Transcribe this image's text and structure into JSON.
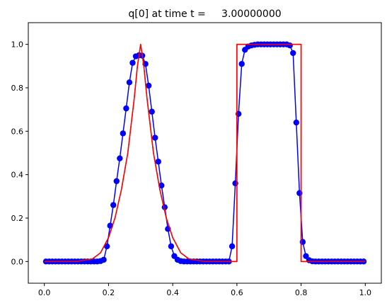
{
  "chart_data": {
    "type": "line",
    "title": "q[0] at time t =     3.00000000",
    "xlabel": "",
    "ylabel": "",
    "xlim": [
      -0.05,
      1.05
    ],
    "ylim": [
      -0.1,
      1.1
    ],
    "xticks": [
      0.0,
      0.2,
      0.4,
      0.6,
      0.8,
      1.0
    ],
    "xtick_labels": [
      "0.0",
      "0.2",
      "0.4",
      "0.6",
      "0.8",
      "1.0"
    ],
    "yticks": [
      0.0,
      0.2,
      0.4,
      0.6,
      0.8,
      1.0
    ],
    "ytick_labels": [
      "0.0",
      "0.2",
      "0.4",
      "0.6",
      "0.8",
      "1.0"
    ],
    "grid": false,
    "series": [
      {
        "style": "line-with-markers",
        "color": "#0000ff",
        "x": [
          0.005,
          0.015,
          0.025,
          0.035,
          0.045,
          0.055,
          0.065,
          0.075,
          0.085,
          0.095,
          0.105,
          0.115,
          0.125,
          0.135,
          0.145,
          0.155,
          0.165,
          0.175,
          0.185,
          0.195,
          0.205,
          0.215,
          0.225,
          0.235,
          0.245,
          0.255,
          0.265,
          0.275,
          0.285,
          0.295,
          0.305,
          0.315,
          0.325,
          0.335,
          0.345,
          0.355,
          0.365,
          0.375,
          0.385,
          0.395,
          0.405,
          0.415,
          0.425,
          0.435,
          0.445,
          0.455,
          0.465,
          0.475,
          0.485,
          0.495,
          0.505,
          0.515,
          0.525,
          0.535,
          0.545,
          0.555,
          0.565,
          0.575,
          0.585,
          0.595,
          0.605,
          0.615,
          0.625,
          0.635,
          0.645,
          0.655,
          0.665,
          0.675,
          0.685,
          0.695,
          0.705,
          0.715,
          0.725,
          0.735,
          0.745,
          0.755,
          0.765,
          0.775,
          0.785,
          0.795,
          0.805,
          0.815,
          0.825,
          0.835,
          0.845,
          0.855,
          0.865,
          0.875,
          0.885,
          0.895,
          0.905,
          0.915,
          0.925,
          0.935,
          0.945,
          0.955,
          0.965,
          0.975,
          0.985,
          0.995
        ],
        "y": [
          0.0,
          0.0,
          0.0,
          0.0,
          0.0,
          0.0,
          0.0,
          0.0,
          0.0,
          0.0,
          0.0,
          0.0,
          0.0,
          0.0,
          0.0,
          0.0,
          0.0,
          0.002,
          0.008,
          0.07,
          0.165,
          0.26,
          0.37,
          0.475,
          0.59,
          0.705,
          0.825,
          0.915,
          0.945,
          0.95,
          0.948,
          0.91,
          0.81,
          0.69,
          0.57,
          0.46,
          0.35,
          0.25,
          0.15,
          0.07,
          0.025,
          0.008,
          0.002,
          0.0,
          0.0,
          0.0,
          0.0,
          0.0,
          0.0,
          0.0,
          0.0,
          0.0,
          0.0,
          0.0,
          0.0,
          0.0,
          0.0,
          0.0,
          0.07,
          0.36,
          0.68,
          0.91,
          0.975,
          0.99,
          0.995,
          0.998,
          1.0,
          1.0,
          1.0,
          1.0,
          1.0,
          1.0,
          1.0,
          1.0,
          1.0,
          1.0,
          0.995,
          0.96,
          0.64,
          0.315,
          0.09,
          0.025,
          0.006,
          0.001,
          0.0,
          0.0,
          0.0,
          0.0,
          0.0,
          0.0,
          0.0,
          0.0,
          0.0,
          0.0,
          0.0,
          0.0,
          0.0,
          0.0,
          0.0,
          0.0
        ]
      },
      {
        "style": "line",
        "color": "#ff0000",
        "x": [
          0.0,
          0.1,
          0.15,
          0.175,
          0.2,
          0.22,
          0.24,
          0.26,
          0.28,
          0.29,
          0.3,
          0.31,
          0.32,
          0.34,
          0.36,
          0.38,
          0.4,
          0.425,
          0.45,
          0.5,
          0.6,
          0.6,
          0.8,
          0.8,
          1.0
        ],
        "y": [
          0.0,
          0.0,
          0.012,
          0.04,
          0.11,
          0.2,
          0.33,
          0.5,
          0.75,
          0.9,
          1.0,
          0.9,
          0.75,
          0.5,
          0.33,
          0.2,
          0.11,
          0.04,
          0.012,
          0.0,
          0.0,
          1.0,
          1.0,
          0.0,
          0.0
        ]
      }
    ]
  }
}
